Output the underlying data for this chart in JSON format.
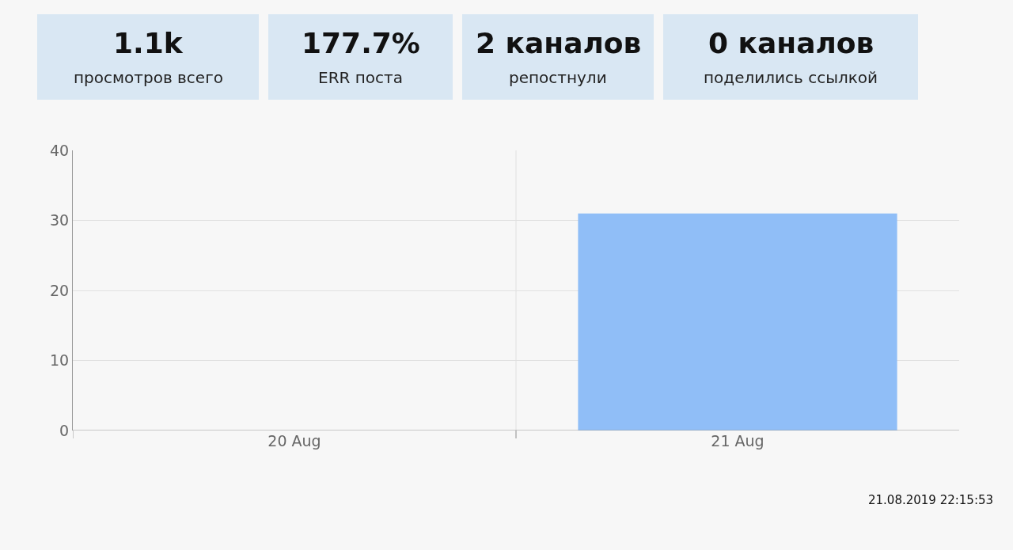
{
  "chart_data": [
    {
      "type": "other",
      "annotations": [
        "1.1k",
        "просмотров всего",
        "177.7%",
        "ERR поста",
        "2 каналов",
        "репостнули",
        "0 каналов",
        "поделились ссылкой"
      ]
    },
    {
      "type": "bar",
      "categories": [
        "20 Aug",
        "21 Aug"
      ],
      "values": [
        0,
        31
      ],
      "color": "#90bef7",
      "ylim": [
        0,
        40
      ],
      "yticks": [
        0,
        10,
        20,
        30,
        40
      ],
      "grid": true,
      "annotations": [
        "21.08.2019 22:15:53"
      ]
    }
  ]
}
